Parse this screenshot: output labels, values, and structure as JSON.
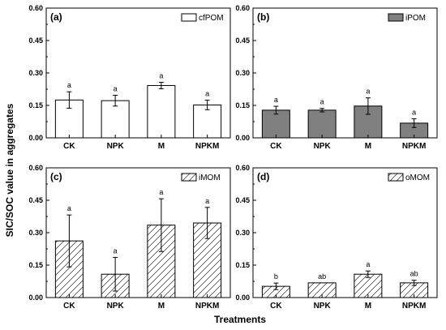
{
  "figure": {
    "ylabel": "SIC/SOC value in aggregates",
    "xlabel": "Treatments"
  },
  "chart_data": [
    {
      "type": "bar",
      "panel_label": "(a)",
      "legend": "cfPOM",
      "fill": "#ffffff",
      "pattern": "none",
      "categories": [
        "CK",
        "NPK",
        "M",
        "NPKM"
      ],
      "values": [
        0.175,
        0.172,
        0.242,
        0.152
      ],
      "errors": [
        0.038,
        0.025,
        0.015,
        0.022
      ],
      "letters": [
        "a",
        "a",
        "a",
        "a"
      ],
      "ylim": [
        0,
        0.6
      ],
      "yticks": [
        "0.00",
        "0.15",
        "0.30",
        "0.45",
        "0.60"
      ],
      "legend_position": "top-right"
    },
    {
      "type": "bar",
      "panel_label": "(b)",
      "legend": "iPOM",
      "fill": "#808080",
      "pattern": "none",
      "categories": [
        "CK",
        "NPK",
        "M",
        "NPKM"
      ],
      "values": [
        0.128,
        0.128,
        0.147,
        0.068
      ],
      "errors": [
        0.018,
        0.008,
        0.038,
        0.02
      ],
      "letters": [
        "a",
        "a",
        "a",
        "a"
      ],
      "ylim": [
        0,
        0.6
      ],
      "yticks": [
        "0.00",
        "0.15",
        "0.30",
        "0.45",
        "0.60"
      ],
      "legend_position": "top-right"
    },
    {
      "type": "bar",
      "panel_label": "(c)",
      "legend": "iMOM",
      "fill": "#ffffff",
      "pattern": "diagonal",
      "categories": [
        "CK",
        "NPK",
        "M",
        "NPKM"
      ],
      "values": [
        0.262,
        0.108,
        0.335,
        0.345
      ],
      "errors": [
        0.12,
        0.078,
        0.122,
        0.072
      ],
      "letters": [
        "a",
        "a",
        "a",
        "a"
      ],
      "ylim": [
        0,
        0.6
      ],
      "yticks": [
        "0.00",
        "0.15",
        "0.30",
        "0.45",
        "0.60"
      ],
      "legend_position": "top-right"
    },
    {
      "type": "bar",
      "panel_label": "(d)",
      "legend": "oMOM",
      "fill": "#ffffff",
      "pattern": "diagonal",
      "categories": [
        "CK",
        "NPK",
        "M",
        "NPKM"
      ],
      "values": [
        0.052,
        0.068,
        0.108,
        0.068
      ],
      "errors": [
        0.015,
        0.0,
        0.015,
        0.012
      ],
      "letters": [
        "b",
        "ab",
        "a",
        "ab"
      ],
      "ylim": [
        0,
        0.6
      ],
      "yticks": [
        "0.00",
        "0.15",
        "0.30",
        "0.45",
        "0.60"
      ],
      "legend_position": "top-right"
    }
  ]
}
